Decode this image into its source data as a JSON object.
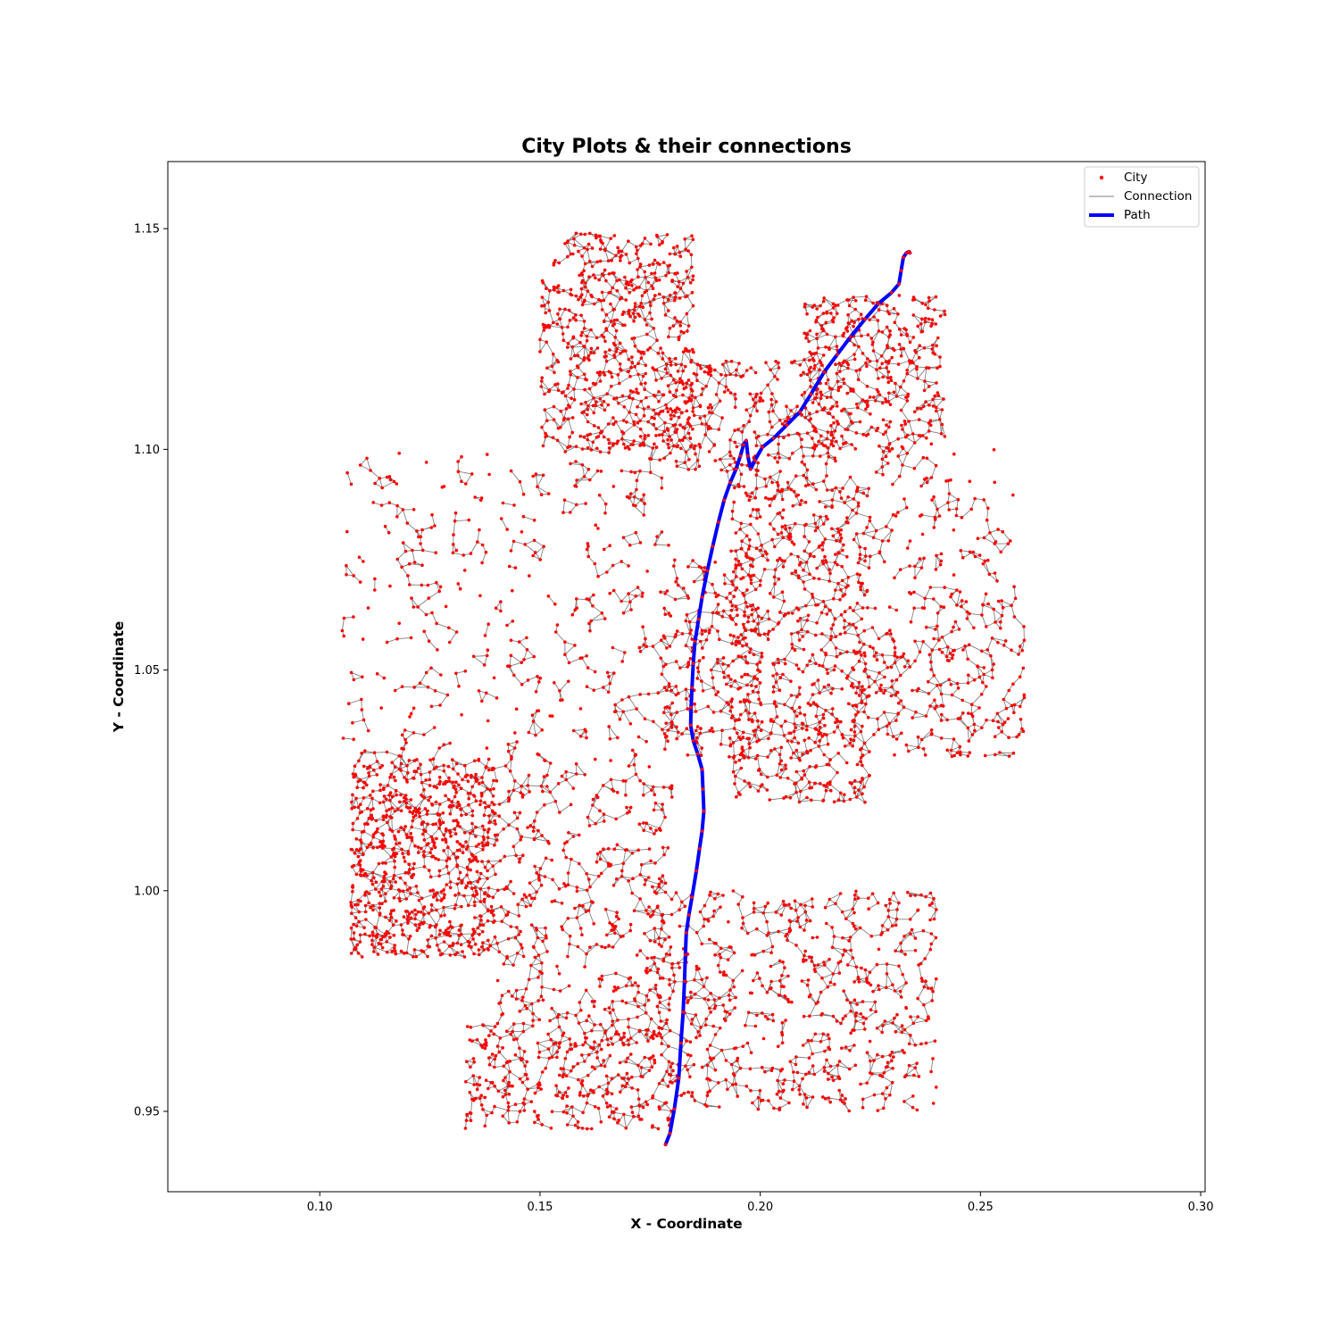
{
  "chart_data": {
    "type": "scatter",
    "title": "City Plots & their connections",
    "xlabel": "X - Coordinate",
    "ylabel": "Y - Coordinate",
    "xlim": [
      0.0655,
      0.301
    ],
    "ylim": [
      0.9318,
      1.1652
    ],
    "xticks": [
      0.1,
      0.15,
      0.2,
      0.25,
      0.3
    ],
    "xtick_labels": [
      "0.10",
      "0.15",
      "0.20",
      "0.25",
      "0.30"
    ],
    "yticks": [
      0.95,
      1.0,
      1.05,
      1.1,
      1.15
    ],
    "ytick_labels": [
      "0.95",
      "1.00",
      "1.05",
      "1.10",
      "1.15"
    ],
    "grid": false,
    "legend_position": "top-right",
    "legend": [
      {
        "label": "City",
        "marker": "dot",
        "color": "#ff0000"
      },
      {
        "label": "Connection",
        "marker": "line",
        "color": "#808080"
      },
      {
        "label": "Path",
        "marker": "thick-line",
        "color": "#0000ff"
      }
    ],
    "colors": {
      "city": "#ff0000",
      "connection": "#808080",
      "path": "#0000ff"
    },
    "city_regions": [
      {
        "x": [
          0.15,
          0.185
        ],
        "y": [
          1.1,
          1.149
        ],
        "n": 650
      },
      {
        "x": [
          0.178,
          0.22
        ],
        "y": [
          1.095,
          1.12
        ],
        "n": 280
      },
      {
        "x": [
          0.21,
          0.242
        ],
        "y": [
          1.1,
          1.135
        ],
        "n": 380
      },
      {
        "x": [
          0.193,
          0.225
        ],
        "y": [
          1.02,
          1.095
        ],
        "n": 700
      },
      {
        "x": [
          0.178,
          0.2
        ],
        "y": [
          1.03,
          1.075
        ],
        "n": 220
      },
      {
        "x": [
          0.22,
          0.26
        ],
        "y": [
          1.03,
          1.06
        ],
        "n": 250
      },
      {
        "x": [
          0.107,
          0.14
        ],
        "y": [
          0.985,
          1.03
        ],
        "n": 800
      },
      {
        "x": [
          0.14,
          0.18
        ],
        "y": [
          0.97,
          1.03
        ],
        "n": 420
      },
      {
        "x": [
          0.175,
          0.24
        ],
        "y": [
          0.95,
          1.0
        ],
        "n": 650
      },
      {
        "x": [
          0.133,
          0.18
        ],
        "y": [
          0.946,
          0.97
        ],
        "n": 350
      },
      {
        "x": [
          0.105,
          0.18
        ],
        "y": [
          1.03,
          1.1
        ],
        "n": 420
      },
      {
        "x": [
          0.225,
          0.258
        ],
        "y": [
          1.06,
          1.1
        ],
        "n": 150
      }
    ],
    "path": {
      "x": [
        0.1785,
        0.1795,
        0.1805,
        0.1815,
        0.182,
        0.1825,
        0.1828,
        0.183,
        0.1832,
        0.1838,
        0.1845,
        0.1855,
        0.1862,
        0.1868,
        0.1872,
        0.187,
        0.1868,
        0.1858,
        0.1848,
        0.1842,
        0.1843,
        0.1845,
        0.1848,
        0.1852,
        0.186,
        0.1868,
        0.188,
        0.1892,
        0.1905,
        0.1918,
        0.1932,
        0.1945,
        0.1955,
        0.1962,
        0.1968,
        0.1972,
        0.1978,
        0.1988,
        0.2005,
        0.203,
        0.206,
        0.209,
        0.2115,
        0.2145,
        0.2175,
        0.2205,
        0.2238,
        0.2268,
        0.2298,
        0.2315,
        0.232,
        0.2325,
        0.2332,
        0.2338,
        0.234
      ],
      "y": [
        0.9425,
        0.945,
        0.9505,
        0.9575,
        0.9655,
        0.9725,
        0.9795,
        0.9855,
        0.9905,
        0.9945,
        0.9985,
        1.0045,
        1.0095,
        1.0135,
        1.018,
        1.023,
        1.0275,
        1.031,
        1.034,
        1.0375,
        1.0415,
        1.046,
        1.0515,
        1.0565,
        1.0615,
        1.0665,
        1.0725,
        1.078,
        1.0835,
        1.0885,
        1.0925,
        1.0955,
        1.0985,
        1.101,
        1.102,
        1.0985,
        1.0955,
        1.0975,
        1.1005,
        1.1025,
        1.1055,
        1.1085,
        1.1125,
        1.1175,
        1.1215,
        1.1255,
        1.1295,
        1.133,
        1.1355,
        1.1375,
        1.1405,
        1.1435,
        1.1445,
        1.1448,
        1.1445
      ]
    }
  }
}
